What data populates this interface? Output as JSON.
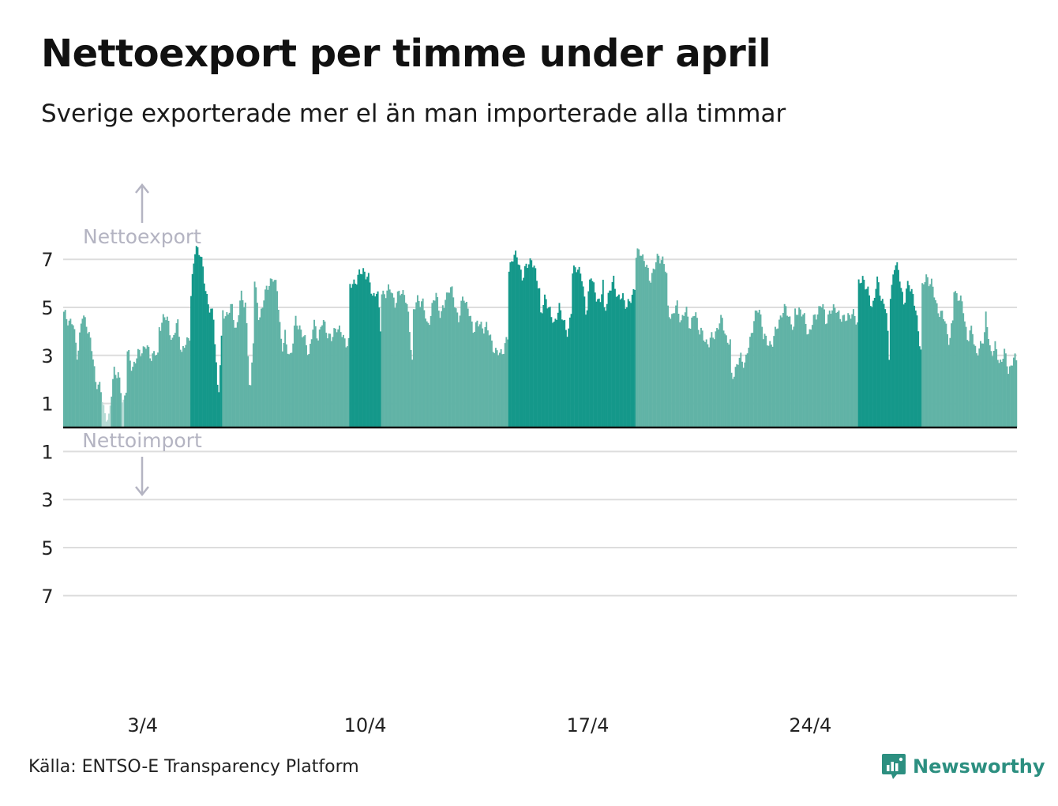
{
  "header": {
    "title": "Nettoexport per timme under april",
    "subtitle": "Sverige exporterade mer el än man importerade alla timmar"
  },
  "footer": {
    "source": "Källa: ENTSO-E Transparency Platform",
    "brand": "Newsworthy"
  },
  "colors": {
    "bar_light": "#61b3a6",
    "bar_dark": "#14988a",
    "bar_faint": "#b5dbd5",
    "annotation": "#b4b4c2",
    "grid": "#dddddd",
    "brand": "#2c8f80"
  },
  "chart_data": {
    "type": "bar",
    "annotations": {
      "export": "Nettoexport",
      "import": "Nettoimport"
    },
    "y_ticks_positive": [
      1,
      3,
      5,
      7
    ],
    "y_ticks_negative": [
      1,
      3,
      5,
      7
    ],
    "y_tick_labels": [
      "7",
      "5",
      "3",
      "1",
      "1",
      "3",
      "5",
      "7"
    ],
    "ylim": [
      -7.5,
      7.5
    ],
    "grid": true,
    "x_tick_labels": [
      "3/4",
      "10/4",
      "17/4",
      "24/4"
    ],
    "x_tick_days": [
      3,
      10,
      17,
      24
    ],
    "x_range_days": [
      1,
      31
    ],
    "days": [
      1,
      2,
      3,
      4,
      5,
      6,
      7,
      8,
      9,
      10,
      11,
      12,
      13,
      14,
      15,
      16,
      17,
      18,
      19,
      20,
      21,
      22,
      23,
      24,
      25,
      26,
      27,
      28,
      29,
      30
    ],
    "bar_shade_by_day": [
      "light",
      "light",
      "light",
      "light",
      "dark",
      "light",
      "light",
      "light",
      "light",
      "dark",
      "light",
      "light",
      "light",
      "light",
      "dark",
      "dark",
      "dark",
      "dark",
      "light",
      "light",
      "light",
      "light",
      "light",
      "light",
      "light",
      "dark",
      "dark",
      "light",
      "light",
      "light"
    ],
    "daily_profile": [
      [
        4.7,
        4.5,
        4.3,
        3.0,
        4.6,
        4.4,
        3.4,
        2.0
      ],
      [
        2.0,
        1.6,
        0.6,
        0.3,
        2.5,
        2.1,
        1.0,
        1.9
      ],
      [
        3.1,
        2.5,
        2.9,
        3.2,
        3.4,
        3.0,
        3.1,
        2.8
      ],
      [
        4.2,
        4.6,
        4.4,
        3.5,
        4.5,
        3.0,
        3.6,
        4.0
      ],
      [
        5.5,
        7.6,
        7.3,
        6.0,
        5.0,
        4.5,
        1.2,
        4.5
      ],
      [
        4.8,
        4.7,
        5.0,
        4.0,
        5.5,
        5.2,
        1.1,
        4.9
      ],
      [
        6.2,
        4.3,
        5.5,
        5.8,
        6.4,
        5.6,
        3.3,
        4.0
      ],
      [
        3.3,
        3.0,
        4.4,
        4.2,
        3.6,
        3.1,
        4.3,
        3.8
      ],
      [
        3.8,
        4.4,
        4.0,
        3.6,
        4.3,
        3.9,
        3.6,
        3.5
      ],
      [
        5.8,
        6.1,
        6.3,
        6.6,
        6.2,
        5.5,
        5.7,
        3.5
      ],
      [
        5.7,
        5.5,
        5.9,
        5.0,
        5.8,
        5.5,
        4.5,
        2.0
      ],
      [
        4.8,
        5.4,
        5.2,
        4.2,
        4.9,
        5.6,
        4.6,
        5.2
      ],
      [
        5.4,
        5.9,
        5.2,
        4.5,
        5.5,
        5.0,
        4.0,
        4.5
      ],
      [
        4.4,
        4.1,
        4.3,
        3.6,
        3.2,
        3.0,
        3.4,
        3.8
      ],
      [
        6.5,
        7.3,
        6.9,
        6.3,
        6.7,
        7.1,
        6.2,
        5.6
      ],
      [
        4.8,
        5.3,
        5.0,
        4.1,
        5.2,
        4.3,
        4.0,
        5.1
      ],
      [
        6.4,
        6.8,
        6.2,
        4.8,
        6.3,
        5.7,
        5.0,
        6.5
      ],
      [
        5.0,
        5.4,
        6.3,
        5.2,
        5.6,
        4.9,
        5.5,
        6.0
      ],
      [
        7.1,
        7.4,
        6.8,
        6.2,
        6.6,
        7.2,
        6.9,
        6.0
      ],
      [
        5.0,
        4.5,
        5.2,
        4.3,
        5.0,
        4.1,
        4.9,
        4.0
      ],
      [
        4.0,
        3.7,
        3.5,
        3.8,
        4.2,
        4.5,
        3.6,
        3.4
      ],
      [
        2.1,
        2.5,
        2.9,
        2.7,
        3.5,
        4.6,
        4.9,
        4.2
      ],
      [
        3.9,
        3.4,
        3.6,
        4.1,
        4.8,
        4.9,
        4.5,
        3.8
      ],
      [
        4.7,
        5.0,
        4.5,
        3.9,
        4.4,
        4.9,
        5.1,
        4.2
      ],
      [
        4.6,
        4.8,
        5.1,
        4.4,
        4.7,
        4.5,
        4.9,
        4.0
      ],
      [
        5.9,
        6.3,
        5.6,
        5.0,
        6.1,
        5.4,
        5.0,
        2.0
      ],
      [
        5.6,
        6.8,
        6.4,
        5.0,
        6.2,
        5.4,
        4.3,
        2.8
      ],
      [
        5.8,
        6.3,
        6.0,
        5.2,
        4.7,
        4.5,
        3.5,
        4.8
      ],
      [
        5.8,
        5.4,
        5.0,
        3.6,
        4.1,
        3.0,
        3.4,
        4.3
      ],
      [
        4.7,
        3.0,
        3.5,
        2.5,
        3.3,
        2.2,
        3.0,
        2.6
      ]
    ]
  }
}
